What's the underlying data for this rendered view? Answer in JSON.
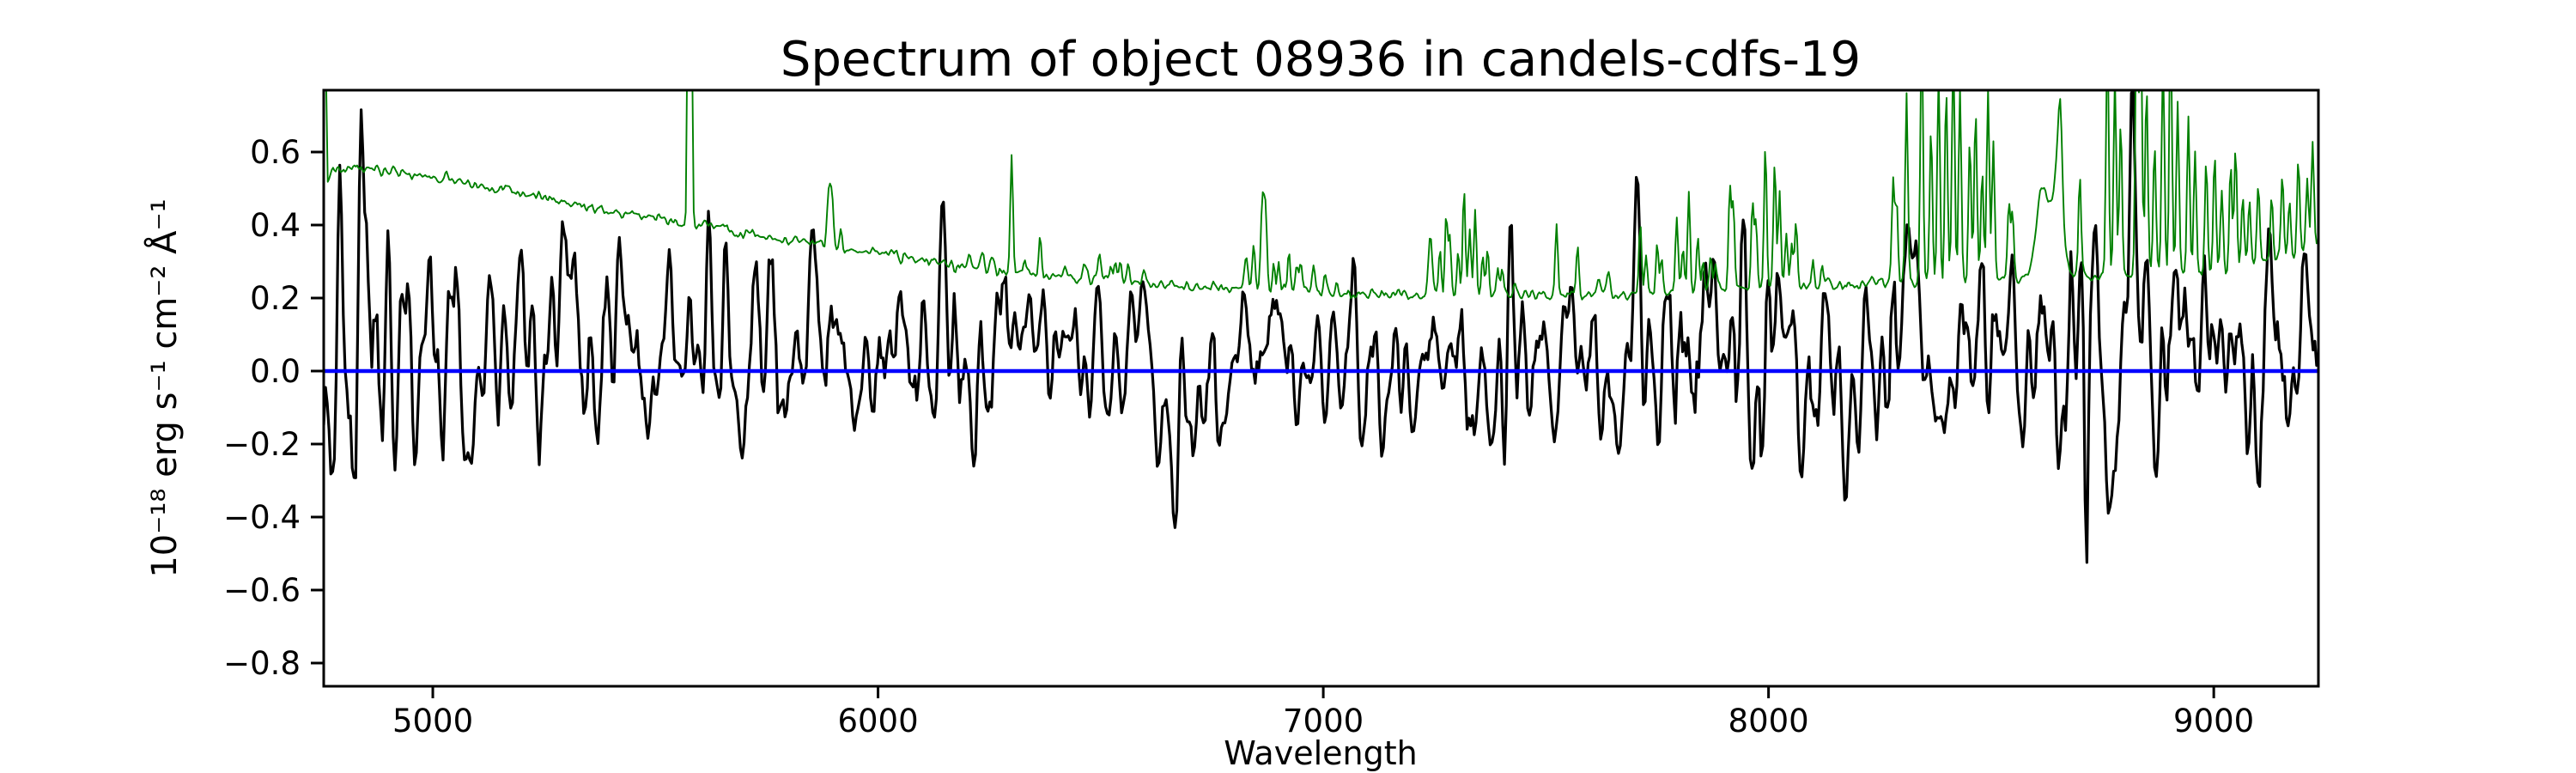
{
  "chart_data": {
    "type": "line",
    "title": "Spectrum of object 08936 in candels-cdfs-19",
    "xlabel": "Wavelength",
    "ylabel": "10⁻¹⁸ erg s⁻¹ cm⁻² Å⁻¹",
    "xlim": [
      4755,
      9235
    ],
    "ylim": [
      -0.8635,
      0.7694
    ],
    "grid": false,
    "legend": null,
    "background": "#ffffff",
    "x_tick_values": [
      5000,
      6000,
      7000,
      8000,
      9000
    ],
    "x_tick_labels": [
      "5000",
      "6000",
      "7000",
      "8000",
      "9000"
    ],
    "y_tick_values": [
      0.6,
      0.4,
      0.2,
      0.0,
      -0.2,
      -0.4,
      -0.6,
      -0.8
    ],
    "y_tick_labels": [
      "0.6",
      "0.4",
      "0.2",
      "0.0",
      "−0.2",
      "−0.4",
      "−0.6",
      "−0.8"
    ],
    "series": [
      {
        "name": "object-spectrum-flux",
        "description": "Noisy black object spectrum oscillating about zero",
        "color": "#000000",
        "line_width": 3.2,
        "model": "noisy-spectrum",
        "sample_step": 4,
        "seed": 42,
        "baseline_anchors": [
          [
            4755,
            0.08
          ],
          [
            5300,
            0.06
          ],
          [
            6200,
            0.045
          ],
          [
            7000,
            0.04
          ],
          [
            7800,
            0.045
          ],
          [
            8600,
            0.06
          ],
          [
            9235,
            0.06
          ]
        ],
        "sigma_anchors": [
          [
            4755,
            0.185
          ],
          [
            5000,
            0.175
          ],
          [
            5300,
            0.16
          ],
          [
            5600,
            0.145
          ],
          [
            6000,
            0.135
          ],
          [
            6500,
            0.12
          ],
          [
            6900,
            0.115
          ],
          [
            7200,
            0.125
          ],
          [
            7600,
            0.138
          ],
          [
            8000,
            0.148
          ],
          [
            8400,
            0.168
          ],
          [
            8700,
            0.188
          ],
          [
            9000,
            0.185
          ],
          [
            9235,
            0.17
          ]
        ],
        "features": [
          [
            4790,
            0.52,
            5
          ],
          [
            4838,
            0.46,
            5
          ],
          [
            5190,
            0.32,
            6
          ],
          [
            5577,
            0.1,
            4
          ],
          [
            8714,
            -0.85,
            4
          ],
          [
            8816,
            0.48,
            5
          ],
          [
            8892,
            -0.38,
            4
          ]
        ]
      },
      {
        "name": "sky-spectrum",
        "description": "Green sky/noise spectrum: declining continuum plus airglow emission lines (5577 OI, 5890 NaD, 6300/6364 OI, O2 and OH bands)",
        "color": "#008000",
        "line_width": 1.9,
        "model": "sky-spectrum",
        "sample_step": 3,
        "seed": 7,
        "noise_sigma": 0.007,
        "continuum_anchors": [
          [
            4755,
            1.45
          ],
          [
            4763,
            0.52
          ],
          [
            4775,
            0.55
          ],
          [
            4850,
            0.555
          ],
          [
            4950,
            0.54
          ],
          [
            5050,
            0.52
          ],
          [
            5150,
            0.5
          ],
          [
            5250,
            0.475
          ],
          [
            5350,
            0.45
          ],
          [
            5450,
            0.43
          ],
          [
            5550,
            0.41
          ],
          [
            5650,
            0.39
          ],
          [
            5750,
            0.37
          ],
          [
            5850,
            0.355
          ],
          [
            5950,
            0.335
          ],
          [
            6050,
            0.315
          ],
          [
            6150,
            0.295
          ],
          [
            6250,
            0.28
          ],
          [
            6350,
            0.265
          ],
          [
            6450,
            0.255
          ],
          [
            6550,
            0.245
          ],
          [
            6650,
            0.235
          ],
          [
            6750,
            0.228
          ],
          [
            6850,
            0.222
          ],
          [
            6950,
            0.218
          ],
          [
            7100,
            0.212
          ],
          [
            7300,
            0.208
          ],
          [
            7500,
            0.208
          ],
          [
            7700,
            0.212
          ],
          [
            7900,
            0.222
          ],
          [
            8100,
            0.232
          ],
          [
            8300,
            0.242
          ],
          [
            8500,
            0.25
          ],
          [
            8700,
            0.258
          ],
          [
            8900,
            0.268
          ],
          [
            9000,
            0.28
          ],
          [
            9100,
            0.3
          ],
          [
            9180,
            0.32
          ],
          [
            9235,
            0.34
          ]
        ],
        "emission_lines": [
          [
            5577,
            3.0,
            3
          ],
          [
            5890,
            0.17,
            4
          ],
          [
            5897,
            0.1,
            3
          ],
          [
            5917,
            0.05,
            3
          ],
          [
            6205,
            0.03,
            4
          ],
          [
            6235,
            0.05,
            4
          ],
          [
            6257,
            0.04,
            4
          ],
          [
            6300,
            0.32,
            3
          ],
          [
            6329,
            0.04,
            3
          ],
          [
            6364,
            0.11,
            3
          ],
          [
            6420,
            0.03,
            4
          ],
          [
            6465,
            0.04,
            4
          ],
          [
            6498,
            0.07,
            4
          ],
          [
            6522,
            0.04,
            3
          ],
          [
            6533,
            0.06,
            3
          ],
          [
            6544,
            0.05,
            3
          ],
          [
            6562,
            0.04,
            3
          ],
          [
            6596,
            0.03,
            3
          ],
          [
            6827,
            0.08,
            4
          ],
          [
            6844,
            0.12,
            3
          ],
          [
            6864,
            0.24,
            4
          ],
          [
            6871,
            0.18,
            3
          ],
          [
            6889,
            0.08,
            3
          ],
          [
            6900,
            0.07,
            3
          ],
          [
            6923,
            0.11,
            3
          ],
          [
            6940,
            0.07,
            3
          ],
          [
            6949,
            0.08,
            3
          ],
          [
            6978,
            0.06,
            3
          ],
          [
            7004,
            0.05,
            3
          ],
          [
            7030,
            0.03,
            3
          ],
          [
            7240,
            0.16,
            4
          ],
          [
            7262,
            0.12,
            3
          ],
          [
            7276,
            0.22,
            3
          ],
          [
            7284,
            0.15,
            3
          ],
          [
            7303,
            0.12,
            3
          ],
          [
            7316,
            0.3,
            3
          ],
          [
            7329,
            0.18,
            3
          ],
          [
            7341,
            0.24,
            3
          ],
          [
            7358,
            0.12,
            3
          ],
          [
            7369,
            0.12,
            3
          ],
          [
            7392,
            0.08,
            3
          ],
          [
            7402,
            0.07,
            3
          ],
          [
            7430,
            0.04,
            3
          ],
          [
            7524,
            0.2,
            3
          ],
          [
            7571,
            0.14,
            3
          ],
          [
            7618,
            0.06,
            4
          ],
          [
            7640,
            0.05,
            4
          ],
          [
            7712,
            0.18,
            3
          ],
          [
            7725,
            0.1,
            3
          ],
          [
            7750,
            0.14,
            3
          ],
          [
            7760,
            0.1,
            3
          ],
          [
            7794,
            0.21,
            3
          ],
          [
            7808,
            0.12,
            3
          ],
          [
            7821,
            0.27,
            3
          ],
          [
            7841,
            0.14,
            3
          ],
          [
            7853,
            0.1,
            3
          ],
          [
            7870,
            0.09,
            3
          ],
          [
            7880,
            0.07,
            3
          ],
          [
            7913,
            0.29,
            3
          ],
          [
            7921,
            0.22,
            3
          ],
          [
            7964,
            0.24,
            3
          ],
          [
            7972,
            0.18,
            3
          ],
          [
            7993,
            0.4,
            3
          ],
          [
            8014,
            0.34,
            3
          ],
          [
            8025,
            0.27,
            3
          ],
          [
            8040,
            0.15,
            3
          ],
          [
            8052,
            0.12,
            3
          ],
          [
            8062,
            0.18,
            3
          ],
          [
            8100,
            0.07,
            3
          ],
          [
            8120,
            0.05,
            3
          ],
          [
            8280,
            0.28,
            3
          ],
          [
            8288,
            0.22,
            3
          ],
          [
            8310,
            0.52,
            3
          ],
          [
            8344,
            0.72,
            3
          ],
          [
            8365,
            0.42,
            3
          ],
          [
            8382,
            0.58,
            3
          ],
          [
            8399,
            0.52,
            3
          ],
          [
            8415,
            0.66,
            3
          ],
          [
            8430,
            0.52,
            3
          ],
          [
            8452,
            0.38,
            3
          ],
          [
            8465,
            0.46,
            3
          ],
          [
            8480,
            0.3,
            3
          ],
          [
            8493,
            0.52,
            3
          ],
          [
            8505,
            0.38,
            3
          ],
          [
            8540,
            0.22,
            3
          ],
          [
            8548,
            0.18,
            3
          ],
          [
            8615,
            0.26,
            13
          ],
          [
            8650,
            0.32,
            11
          ],
          [
            8655,
            0.2,
            4
          ],
          [
            8699,
            0.28,
            3
          ],
          [
            8761,
            0.65,
            3
          ],
          [
            8778,
            0.55,
            3
          ],
          [
            8791,
            0.42,
            3
          ],
          [
            8827,
            0.8,
            3
          ],
          [
            8836,
            0.7,
            3
          ],
          [
            8849,
            0.52,
            3
          ],
          [
            8867,
            0.35,
            3
          ],
          [
            8886,
            0.6,
            3
          ],
          [
            8903,
            0.7,
            3
          ],
          [
            8919,
            0.48,
            3
          ],
          [
            8943,
            0.42,
            3
          ],
          [
            8958,
            0.32,
            3
          ],
          [
            8983,
            0.28,
            3
          ],
          [
            9002,
            0.32,
            3
          ],
          [
            9018,
            0.22,
            3
          ],
          [
            9038,
            0.28,
            3
          ],
          [
            9049,
            0.32,
            3
          ],
          [
            9065,
            0.18,
            3
          ],
          [
            9080,
            0.18,
            3
          ],
          [
            9100,
            0.22,
            3
          ],
          [
            9130,
            0.18,
            3
          ],
          [
            9154,
            0.22,
            3
          ],
          [
            9170,
            0.16,
            3
          ],
          [
            9190,
            0.26,
            3
          ],
          [
            9210,
            0.2,
            3
          ],
          [
            9222,
            0.3,
            3
          ]
        ]
      },
      {
        "name": "zero-flux-line",
        "description": "Horizontal blue reference line at zero flux",
        "color": "#0000ff",
        "line_width": 4.5,
        "model": "hline",
        "y": 0.0
      }
    ]
  }
}
